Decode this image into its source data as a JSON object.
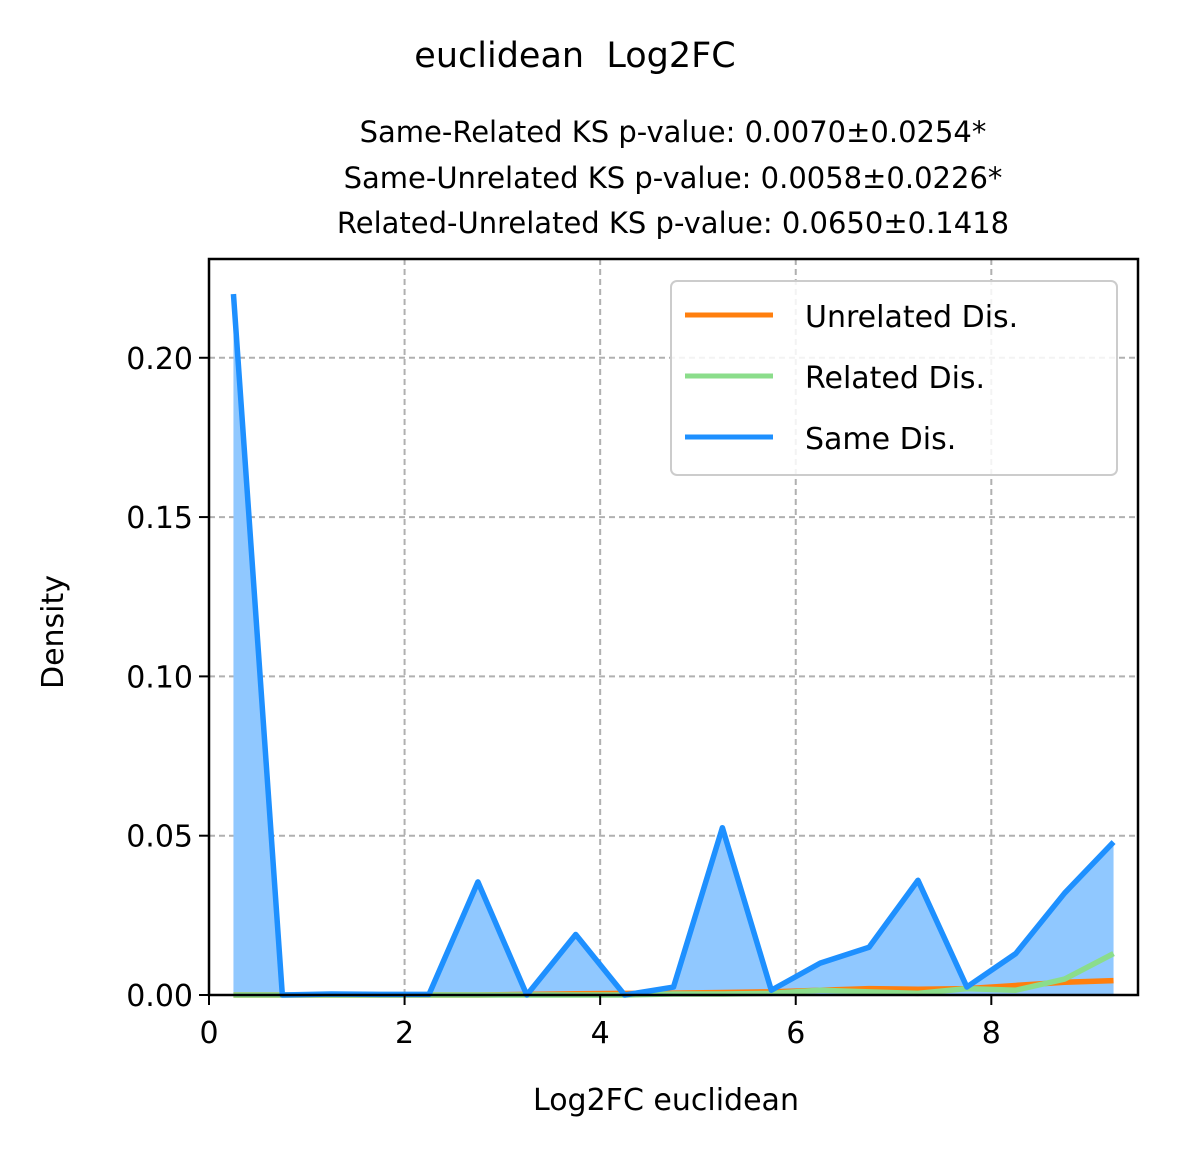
{
  "chart_data": {
    "type": "area",
    "title": "euclidean  Log2FC",
    "subtitle_lines": [
      "Same-Related KS p-value: 0.0070±0.0254*",
      "Same-Unrelated KS p-value: 0.0058±0.0226*",
      "Related-Unrelated KS p-value: 0.0650±0.1418"
    ],
    "xlabel": "Log2FC euclidean",
    "ylabel": "Density",
    "xlim": [
      0,
      9.5
    ],
    "ylim": [
      0,
      0.231
    ],
    "x_ticks": [
      0,
      2,
      4,
      6,
      8
    ],
    "x_tick_labels": [
      "0",
      "2",
      "4",
      "6",
      "8"
    ],
    "y_ticks": [
      0,
      0.05,
      0.1,
      0.15,
      0.2
    ],
    "y_tick_labels": [
      "0.00",
      "0.05",
      "0.10",
      "0.15",
      "0.20"
    ],
    "grid": true,
    "legend_position": "top-right",
    "x": [
      0.25,
      0.75,
      1.25,
      1.75,
      2.25,
      2.75,
      3.25,
      3.75,
      4.25,
      4.75,
      5.25,
      5.75,
      6.25,
      6.75,
      7.25,
      7.75,
      8.25,
      8.75,
      9.25
    ],
    "series": [
      {
        "name": "Unrelated Dis.",
        "color": "#ff7f0e",
        "fill": false,
        "values": [
          0.0,
          0.0,
          0.0,
          0.0,
          0.0,
          0.0,
          0.0002,
          0.0004,
          0.0005,
          0.0006,
          0.0008,
          0.001,
          0.0015,
          0.002,
          0.0018,
          0.002,
          0.003,
          0.004,
          0.0045
        ]
      },
      {
        "name": "Related Dis.",
        "color": "#8bdd8b",
        "fill": false,
        "values": [
          0.0,
          0.0,
          0.0,
          0.0,
          0.0,
          0.0,
          0.0,
          0.0,
          0.0,
          0.0003,
          0.0003,
          0.0005,
          0.0015,
          0.001,
          0.0005,
          0.002,
          0.0015,
          0.005,
          0.013
        ]
      },
      {
        "name": "Same Dis.",
        "color": "#1e90ff",
        "fill": true,
        "fill_color": "#90c8ff",
        "values": [
          0.22,
          0.0,
          0.0003,
          0.0002,
          0.0002,
          0.0355,
          0.0,
          0.019,
          0.0,
          0.0025,
          0.0525,
          0.0015,
          0.01,
          0.015,
          0.036,
          0.0025,
          0.013,
          0.032,
          0.048
        ]
      }
    ]
  }
}
